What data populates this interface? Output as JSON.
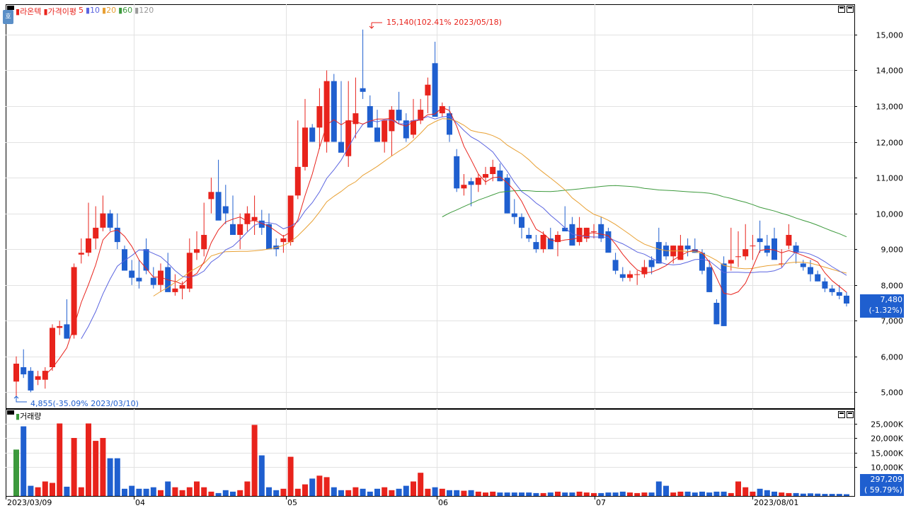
{
  "stock_name": "라온텍",
  "price_legend": {
    "label": "가격이평",
    "ma5": "5",
    "ma10": "10",
    "ma20": "20",
    "ma60": "60",
    "ma120": "120"
  },
  "volume_legend": "거래량",
  "side_icon": "호",
  "colors": {
    "up": "#e8231c",
    "down": "#1f5fcf",
    "ma5": "#e8231c",
    "ma10": "#5a64e0",
    "ma20": "#e8a033",
    "ma60": "#3d9a3d",
    "ma120": "#999999"
  },
  "annotations": {
    "high": "15,140(102.41% 2023/05/18)",
    "low": "4,855(-35.09% 2023/03/10)"
  },
  "current_price": {
    "value": "7,480",
    "change": "(-1.32%)"
  },
  "current_volume": {
    "value": "297,209",
    "change": "( 59.79%)"
  },
  "chart_data": {
    "type": "candlestick",
    "price_axis": {
      "ticks": [
        "15,000",
        "14,000",
        "13,000",
        "12,000",
        "11,000",
        "10,000",
        "9,000",
        "8,000",
        "7,000",
        "6,000",
        "5,000"
      ]
    },
    "volume_axis": {
      "ticks": [
        "25,000K",
        "20,000K",
        "15,000K",
        "10,000K"
      ]
    },
    "x_labels": [
      "2023/03/09",
      "04",
      "05",
      "06",
      "07",
      "2023/08/01"
    ]
  }
}
